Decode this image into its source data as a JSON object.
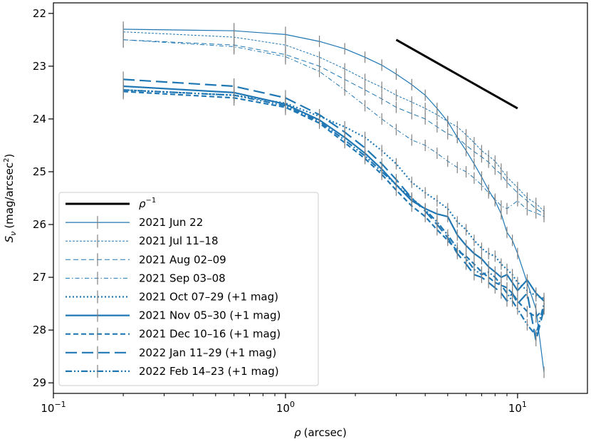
{
  "chart_data": {
    "type": "line",
    "title": "",
    "xlabel": "ρ (arcsec)",
    "xlabel_symbol": "ρ",
    "xlabel_unit": "(arcsec)",
    "ylabel": "S_ν (mag/arcsec²)",
    "ylabel_symbol": "S",
    "ylabel_subscript": "ν",
    "ylabel_unit_pre": "(mag/arcsec",
    "ylabel_unit_sup": "2",
    "ylabel_unit_post": ")",
    "xscale": "log",
    "xlim": [
      0.1,
      20
    ],
    "ylim": [
      29.2,
      21.8
    ],
    "y_inverted": true,
    "x_major_ticks": [
      {
        "value": 0.1,
        "base": "10",
        "exp": "−1"
      },
      {
        "value": 1,
        "base": "10",
        "exp": "0"
      },
      {
        "value": 10,
        "base": "10",
        "exp": "1"
      }
    ],
    "y_ticks": [
      22,
      23,
      24,
      25,
      26,
      27,
      28,
      29
    ],
    "y_tick_labels": [
      "22",
      "23",
      "24",
      "25",
      "26",
      "27",
      "28",
      "29"
    ],
    "legend_position": "lower-left",
    "reference_line": {
      "label_base": "ρ",
      "label_exp": "−1",
      "x": [
        3.0,
        10.0
      ],
      "y": [
        22.5,
        23.8
      ],
      "color": "#000000"
    },
    "series": [
      {
        "name": "2021 Jun 22",
        "style": "solid",
        "width": 1.2,
        "x": [
          0.2,
          0.6,
          1.0,
          1.4,
          1.8,
          2.2,
          2.6,
          3.0,
          3.5,
          4.0,
          4.5,
          5.0,
          5.5,
          6.0,
          6.5,
          7.0,
          7.5,
          8.0,
          8.5,
          9.0,
          9.5,
          10.0,
          11.0,
          12.0,
          13.0
        ],
        "y": [
          22.3,
          22.33,
          22.4,
          22.53,
          22.67,
          22.83,
          22.98,
          23.15,
          23.35,
          23.55,
          23.8,
          24.05,
          24.35,
          24.6,
          24.85,
          25.1,
          25.35,
          25.55,
          25.8,
          26.15,
          26.3,
          26.55,
          27.1,
          27.6,
          28.8
        ]
      },
      {
        "name": "2021 Jul 11–18",
        "style": "short-dash",
        "width": 1.0,
        "x": [
          0.2,
          0.6,
          1.0,
          1.4,
          1.8,
          2.2,
          2.6,
          3.0,
          3.5,
          4.0,
          4.5,
          5.0,
          5.5,
          6.0,
          6.5,
          7.0,
          7.5,
          8.0,
          8.5,
          9.0,
          10.0,
          11.0,
          12.0,
          13.0
        ],
        "y": [
          22.35,
          22.45,
          22.6,
          22.83,
          23.05,
          23.25,
          23.4,
          23.55,
          23.68,
          23.8,
          23.92,
          24.05,
          24.15,
          24.3,
          24.45,
          24.6,
          24.7,
          24.8,
          24.95,
          25.1,
          25.3,
          25.5,
          25.6,
          25.75
        ]
      },
      {
        "name": "2021 Aug 02–09",
        "style": "dash",
        "width": 1.0,
        "x": [
          0.2,
          0.6,
          1.0,
          1.4,
          1.8,
          2.2,
          2.6,
          3.0,
          3.5,
          4.0,
          4.5,
          5.0,
          5.5,
          6.0,
          6.5,
          7.0,
          7.5,
          8.0,
          8.5,
          9.0,
          10.0,
          11.0,
          12.0,
          13.0
        ],
        "y": [
          22.5,
          22.6,
          22.78,
          23.0,
          23.25,
          23.45,
          23.62,
          23.78,
          23.9,
          24.0,
          24.15,
          24.28,
          24.35,
          24.5,
          24.62,
          24.72,
          24.82,
          24.95,
          25.05,
          25.2,
          25.4,
          25.55,
          25.7,
          25.8
        ]
      },
      {
        "name": "2021 Sep 03–08",
        "style": "dash-dot",
        "width": 1.0,
        "x": [
          0.2,
          0.6,
          1.0,
          1.4,
          1.8,
          2.2,
          2.6,
          3.0,
          3.5,
          4.0,
          4.5,
          5.0,
          5.5,
          6.0,
          6.5,
          7.0,
          7.5,
          8.0,
          8.5,
          9.0,
          10.0,
          11.0,
          12.0,
          13.0
        ],
        "y": [
          22.5,
          22.63,
          22.82,
          23.1,
          23.45,
          23.75,
          24.0,
          24.2,
          24.4,
          24.5,
          24.65,
          24.8,
          24.92,
          25.0,
          25.12,
          25.25,
          25.4,
          25.52,
          25.65,
          25.7,
          25.55,
          25.72,
          25.78,
          25.85
        ]
      },
      {
        "name": "2021 Oct 07–29 (+1 mag)",
        "style": "dotted",
        "width": 2.2,
        "x": [
          0.2,
          0.6,
          1.0,
          1.4,
          1.8,
          2.2,
          2.6,
          3.0,
          3.5,
          4.0,
          4.5,
          5.0,
          5.5,
          6.0,
          6.5,
          7.0,
          7.5,
          8.0,
          8.5,
          9.0,
          9.5,
          10.0,
          11.0,
          12.0,
          13.0
        ],
        "y": [
          23.45,
          23.55,
          23.7,
          23.95,
          24.15,
          24.35,
          24.6,
          24.85,
          25.2,
          25.4,
          25.55,
          25.7,
          25.95,
          26.1,
          26.3,
          26.45,
          26.55,
          26.6,
          26.75,
          26.85,
          26.95,
          27.1,
          27.25,
          27.35,
          27.4
        ]
      },
      {
        "name": "2021 Nov 05–30 (+1 mag)",
        "style": "solid",
        "width": 2.2,
        "x": [
          0.2,
          0.6,
          1.0,
          1.4,
          1.8,
          2.2,
          2.6,
          3.0,
          3.5,
          4.0,
          4.5,
          5.0,
          5.5,
          6.0,
          6.5,
          7.0,
          7.5,
          8.0,
          8.5,
          9.0,
          9.5,
          10.0,
          11.0,
          12.0,
          13.0
        ],
        "y": [
          23.38,
          23.5,
          23.72,
          24.02,
          24.35,
          24.65,
          24.95,
          25.25,
          25.55,
          25.7,
          25.8,
          25.85,
          26.2,
          26.4,
          26.55,
          26.65,
          26.8,
          26.9,
          27.0,
          26.95,
          27.1,
          27.25,
          27.05,
          27.3,
          27.45
        ]
      },
      {
        "name": "2021 Dec 10–16 (+1 mag)",
        "style": "dash",
        "width": 2.2,
        "x": [
          0.2,
          0.6,
          1.0,
          1.4,
          1.8,
          2.2,
          2.6,
          3.0,
          3.5,
          4.0,
          4.5,
          5.0,
          5.5,
          6.0,
          6.5,
          7.0,
          7.5,
          8.0,
          8.5,
          9.0,
          9.5,
          10.0,
          11.0,
          12.0,
          13.0
        ],
        "y": [
          23.48,
          23.6,
          23.78,
          24.08,
          24.45,
          24.75,
          25.05,
          25.35,
          25.65,
          25.85,
          26.1,
          26.3,
          26.5,
          26.6,
          26.75,
          26.9,
          27.0,
          27.1,
          27.15,
          27.2,
          27.3,
          27.45,
          27.65,
          27.75,
          27.6
        ]
      },
      {
        "name": "2022 Jan 11–29 (+1 mag)",
        "style": "long-dash",
        "width": 2.2,
        "x": [
          0.2,
          0.6,
          1.0,
          1.4,
          1.8,
          2.2,
          2.6,
          3.0,
          3.5,
          4.0,
          4.5,
          5.0,
          5.5,
          6.0,
          6.5,
          7.0,
          7.5,
          8.0,
          8.5,
          9.0,
          9.5,
          10.0,
          11.0,
          12.0,
          13.0
        ],
        "y": [
          23.25,
          23.38,
          23.6,
          23.92,
          24.25,
          24.55,
          24.85,
          25.15,
          25.5,
          25.75,
          26.0,
          26.25,
          26.55,
          26.75,
          26.95,
          27.0,
          27.1,
          27.2,
          27.3,
          27.45,
          27.3,
          27.5,
          27.3,
          28.2,
          27.6
        ]
      },
      {
        "name": "2022 Feb 14–23 (+1 mag)",
        "style": "dash-dot-dot",
        "width": 2.2,
        "x": [
          0.2,
          0.6,
          1.0,
          1.4,
          1.8,
          2.2,
          2.6,
          3.0,
          3.5,
          4.0,
          4.5,
          5.0,
          5.5,
          6.0,
          6.5,
          7.0,
          7.5,
          8.0,
          8.5,
          9.0,
          9.5,
          10.0,
          11.0,
          12.0,
          13.0
        ],
        "y": [
          23.45,
          23.55,
          23.75,
          24.05,
          24.4,
          24.7,
          25.0,
          25.25,
          25.5,
          25.72,
          25.95,
          26.2,
          26.45,
          26.65,
          26.85,
          26.95,
          26.9,
          27.0,
          27.15,
          27.3,
          27.45,
          27.6,
          27.9,
          28.1,
          27.5
        ]
      }
    ]
  },
  "colors": {
    "series": "#1f77b4",
    "errorbar": "#808080",
    "axis": "#000000",
    "legend_border": "#cccccc",
    "reference": "#000000"
  }
}
